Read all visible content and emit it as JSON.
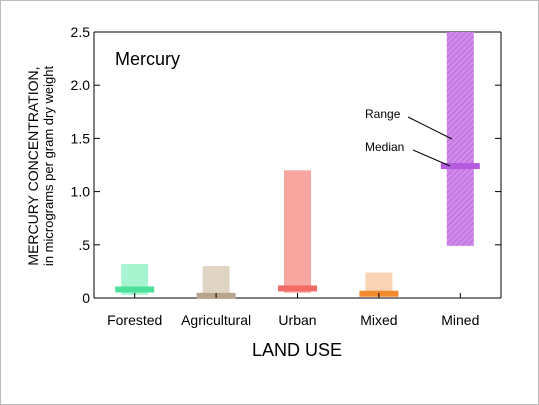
{
  "chart_data": {
    "type": "range-bar",
    "title": "Mercury",
    "xlabel": "LAND USE",
    "ylabel_line1": "MERCURY CONCENTRATION,",
    "ylabel_line2": "in micrograms per gram dry weight",
    "ylim": [
      0,
      2.5
    ],
    "yticks": [
      0,
      0.5,
      1.0,
      1.5,
      2.0,
      2.5
    ],
    "ytick_labels": [
      "0",
      ".5",
      "1.0",
      "1.5",
      "2.0",
      "2.5"
    ],
    "grid": false,
    "categories": [
      "Forested",
      "Agricultural",
      "Urban",
      "Mixed",
      "Mined"
    ],
    "series": [
      {
        "category": "Forested",
        "min": 0.03,
        "max": 0.32,
        "median": 0.08,
        "color": "#a6f5d0",
        "median_color": "#4ce09a"
      },
      {
        "category": "Agricultural",
        "min": 0.0,
        "max": 0.3,
        "median": 0.02,
        "color": "#e0d4c4",
        "median_color": "#b8a48a"
      },
      {
        "category": "Urban",
        "min": 0.05,
        "max": 1.2,
        "median": 0.09,
        "color": "#f8a6a0",
        "median_color": "#f26c66"
      },
      {
        "category": "Mixed",
        "min": 0.02,
        "max": 0.24,
        "median": 0.04,
        "color": "#f8d4b4",
        "median_color": "#f28a2e"
      },
      {
        "category": "Mined",
        "min": 0.49,
        "max": 2.5,
        "median": 1.24,
        "color": "#d08ae8",
        "median_color": "#b45adc"
      }
    ],
    "annotations": {
      "range": "Range",
      "median": "Median"
    }
  }
}
